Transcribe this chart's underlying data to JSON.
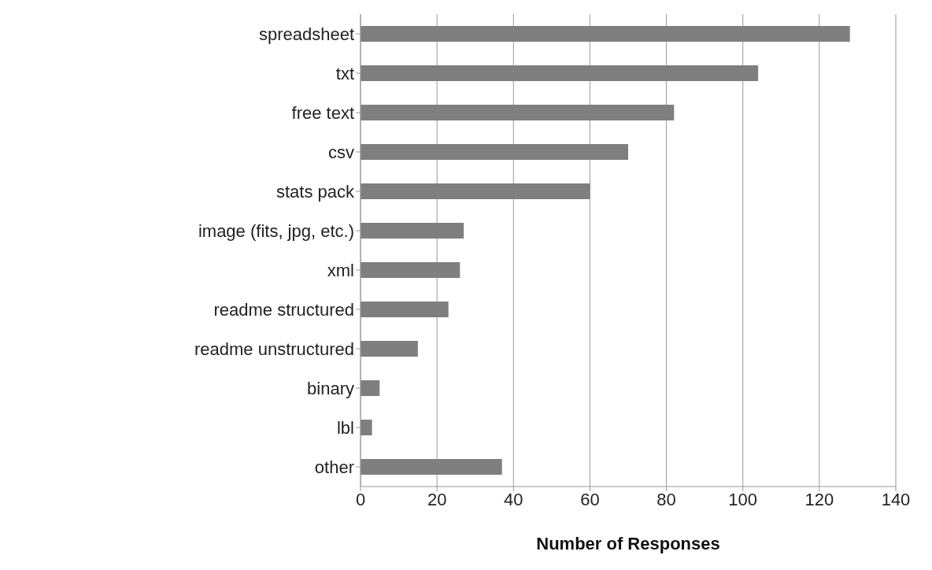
{
  "chart_data": {
    "type": "bar",
    "orientation": "horizontal",
    "xlabel": "Number of Responses",
    "categories": [
      "spreadsheet",
      "txt",
      "free text",
      "csv",
      "stats pack",
      "image (fits, jpg, etc.)",
      "xml",
      "readme structured",
      "readme unstructured",
      "binary",
      "lbl",
      "other"
    ],
    "values": [
      128,
      104,
      82,
      70,
      60,
      27,
      26,
      23,
      15,
      5,
      3,
      37
    ],
    "color": "#7f7f7f",
    "xlim": [
      0,
      140
    ],
    "xticks": [
      0,
      20,
      40,
      60,
      80,
      100,
      120,
      140
    ],
    "grid": "x"
  }
}
